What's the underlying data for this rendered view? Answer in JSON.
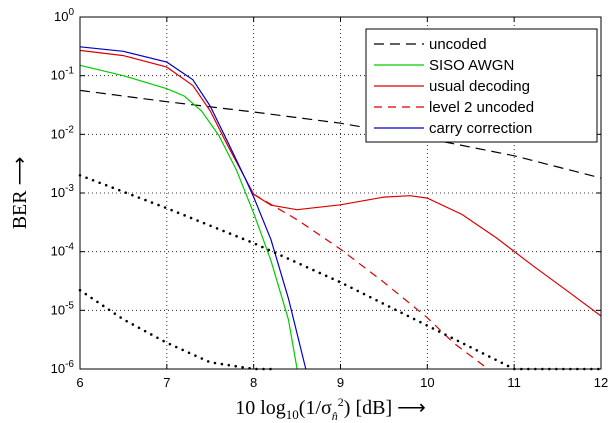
{
  "chart_data": {
    "type": "line",
    "xlabel": "10 log10(1/σn̂²) [dB] ⟶",
    "ylabel": "BER ⟶",
    "xlim": [
      6,
      12
    ],
    "ylim": [
      1e-06,
      1
    ],
    "y_scale": "log",
    "grid": "dotted",
    "legend_position": "top-right",
    "x_ticks": [
      "6",
      "7",
      "8",
      "9",
      "10",
      "11",
      "12"
    ],
    "y_ticks": [
      {
        "value": 1,
        "exp": "0"
      },
      {
        "value": 0.1,
        "exp": "-1"
      },
      {
        "value": 0.01,
        "exp": "-2"
      },
      {
        "value": 0.001,
        "exp": "-3"
      },
      {
        "value": 0.0001,
        "exp": "-4"
      },
      {
        "value": 1e-05,
        "exp": "-5"
      },
      {
        "value": 1e-06,
        "exp": "-6"
      }
    ],
    "series": [
      {
        "name": "uncoded",
        "color": "#000000",
        "dash": "10,6",
        "legend": true,
        "x": [
          6,
          7,
          8,
          9,
          10,
          11,
          12
        ],
        "y": [
          0.056,
          0.036,
          0.024,
          0.0155,
          0.0085,
          0.0043,
          0.0018
        ]
      },
      {
        "name": "SISO AWGN",
        "color": "#00cc00",
        "dash": "",
        "legend": true,
        "x": [
          6,
          6.5,
          7,
          7.2,
          7.4,
          7.6,
          7.8,
          8.0,
          8.2,
          8.4,
          8.5
        ],
        "y": [
          0.15,
          0.1,
          0.06,
          0.045,
          0.025,
          0.0095,
          0.0025,
          0.00045,
          7e-05,
          7e-06,
          1e-06
        ]
      },
      {
        "name": "usual decoding",
        "color": "#dd0000",
        "dash": "",
        "legend": true,
        "x": [
          6,
          6.5,
          7,
          7.3,
          7.5,
          7.7,
          7.9,
          8.0,
          8.2,
          8.5,
          9.0,
          9.5,
          9.8,
          10.0,
          10.4,
          10.8,
          11.2,
          11.6,
          12.0
        ],
        "y": [
          0.27,
          0.22,
          0.14,
          0.068,
          0.025,
          0.0065,
          0.0018,
          0.00095,
          0.00062,
          0.00052,
          0.00063,
          0.00085,
          0.0009,
          0.00082,
          0.00043,
          0.00017,
          6e-05,
          2.2e-05,
          8e-06
        ]
      },
      {
        "name": "level 2 uncoded",
        "color": "#dd0000",
        "dash": "8,6",
        "legend": true,
        "x": [
          8.0,
          8.5,
          9.0,
          9.5,
          10.0,
          10.3,
          10.7
        ],
        "y": [
          0.00095,
          0.00035,
          0.00011,
          3e-05,
          7.5e-06,
          2.8e-06,
          1e-06
        ]
      },
      {
        "name": "carry correction",
        "color": "#0000cc",
        "dash": "",
        "legend": true,
        "x": [
          6,
          6.5,
          7,
          7.3,
          7.5,
          7.7,
          7.9,
          8.0,
          8.2,
          8.4,
          8.6
        ],
        "y": [
          0.31,
          0.26,
          0.17,
          0.085,
          0.03,
          0.0075,
          0.0018,
          0.00085,
          0.00016,
          1.6e-05,
          1e-06
        ]
      },
      {
        "name": "",
        "color": "#000000",
        "dash": "dots",
        "legend": false,
        "x": [
          6,
          7,
          8,
          9,
          10,
          11,
          12
        ],
        "y": [
          0.002,
          0.00055,
          0.00014,
          3e-05,
          5.5e-06,
          1e-06,
          1e-06
        ]
      },
      {
        "name": "",
        "color": "#000000",
        "dash": "dots",
        "legend": false,
        "x": [
          6,
          6.5,
          7,
          7.5,
          8.0,
          8.2
        ],
        "y": [
          2.2e-05,
          7e-06,
          2.8e-06,
          1.3e-06,
          1e-06,
          1e-06
        ]
      }
    ]
  }
}
